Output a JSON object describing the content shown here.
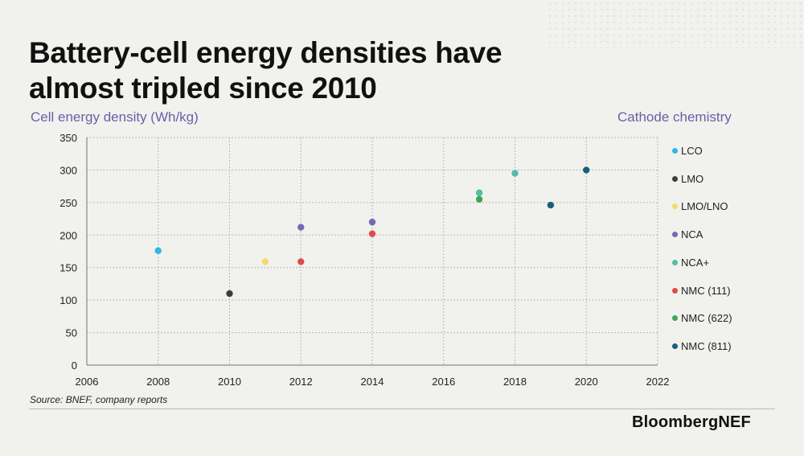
{
  "title_lines": [
    "Battery-cell energy densities have",
    "almost tripled since 2010"
  ],
  "source": "Source: BNEF, company reports",
  "brand": "BloombergNEF",
  "chart_data": {
    "type": "scatter",
    "title": "Battery-cell energy densities have almost tripled since 2010",
    "ylabel": "Cell energy density (Wh/kg)",
    "legend_title": "Cathode chemistry",
    "xlim": [
      2006,
      2022
    ],
    "ylim": [
      0,
      350
    ],
    "xticks": [
      2006,
      2008,
      2010,
      2012,
      2014,
      2016,
      2018,
      2020,
      2022
    ],
    "yticks": [
      0,
      50,
      100,
      150,
      200,
      250,
      300,
      350
    ],
    "grid": "dotted",
    "legend_position": "right",
    "series": [
      {
        "name": "LCO",
        "color": "#2bb8e6",
        "points": [
          [
            2008,
            176
          ]
        ]
      },
      {
        "name": "LMO",
        "color": "#3d3d3d",
        "points": [
          [
            2010,
            110
          ]
        ]
      },
      {
        "name": "LMO/LNO",
        "color": "#f7d86a",
        "points": [
          [
            2011,
            159
          ]
        ]
      },
      {
        "name": "NCA",
        "color": "#7b65b5",
        "points": [
          [
            2012,
            212
          ],
          [
            2014,
            220
          ]
        ]
      },
      {
        "name": "NCA+",
        "color": "#4fbfa8",
        "points": [
          [
            2017,
            265
          ],
          [
            2018,
            295
          ]
        ]
      },
      {
        "name": "NMC (111)",
        "color": "#e24a4a",
        "points": [
          [
            2012,
            159
          ],
          [
            2014,
            202
          ]
        ]
      },
      {
        "name": "NMC (622)",
        "color": "#3ea653",
        "points": [
          [
            2017,
            255
          ]
        ]
      },
      {
        "name": "NMC (811)",
        "color": "#17607a",
        "points": [
          [
            2019,
            246
          ],
          [
            2020,
            300
          ]
        ]
      }
    ]
  }
}
